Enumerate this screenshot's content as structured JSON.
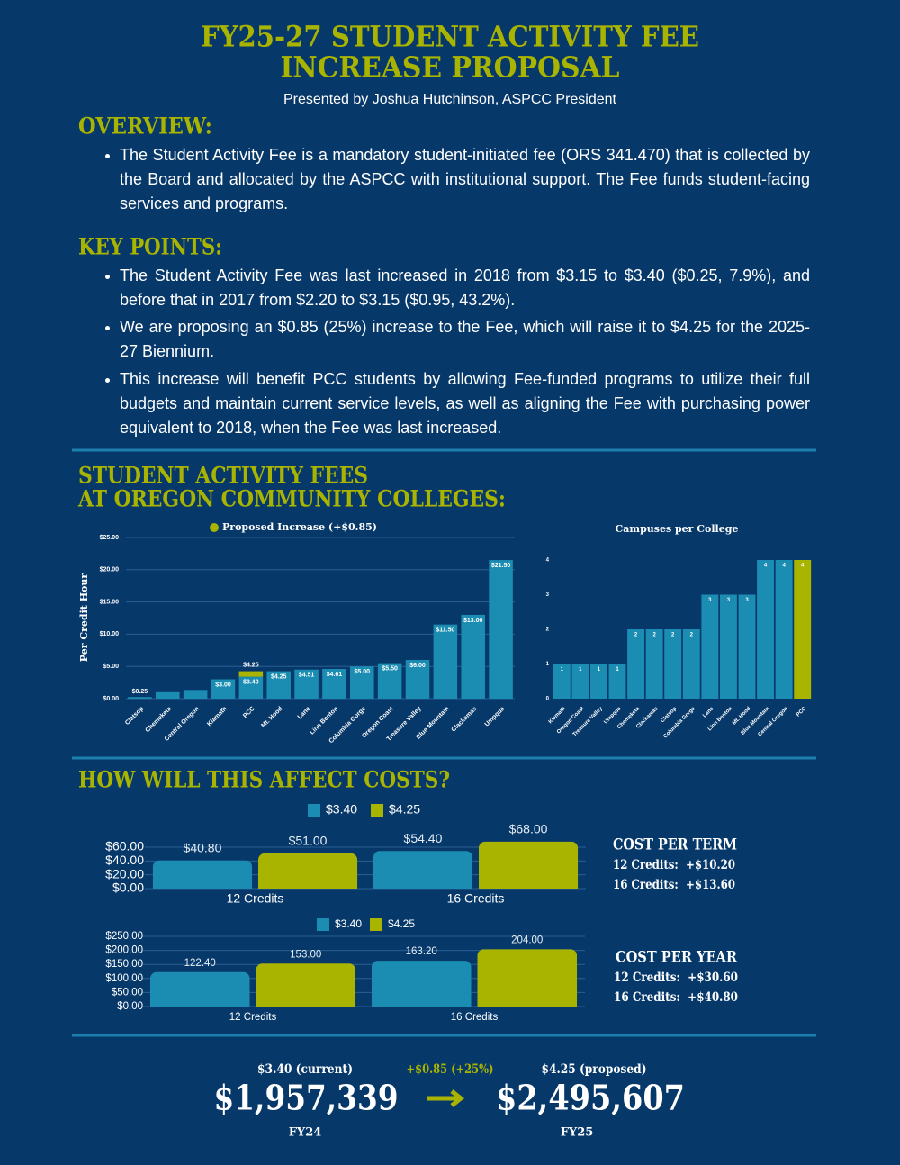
{
  "header": {
    "title": [
      "FY25-27 STUDENT ACTIVITY FEE",
      "INCREASE PROPOSAL"
    ],
    "subtitle": "Presented by Joshua Hutchinson, ASPCC President"
  },
  "overview": {
    "heading": "OVERVIEW:",
    "bullets": [
      "The Student Activity Fee is a mandatory student-initiated fee (ORS 341.470) that is collected by the Board and allocated by the ASPCC with institutional support. The Fee funds student-facing services and programs."
    ]
  },
  "key_points": {
    "heading": "KEY POINTS:",
    "bullets": [
      "The Student Activity Fee was last increased in 2018 from $3.15 to $3.40 ($0.25, 7.9%), and before that in 2017 from $2.20 to $3.15 ($0.95, 43.2%).",
      "We are proposing an $0.85 (25%) increase to the Fee, which will raise it to $4.25 for the 2025-27 Biennium.",
      "This increase will benefit PCC students by allowing Fee-funded programs to utilize their full budgets and maintain current service levels, as well as aligning the Fee with purchasing power equivalent to 2018, when the Fee was last increased."
    ]
  },
  "fees_heading": [
    "STUDENT ACTIVITY FEES",
    "AT OREGON COMMUNITY COLLEGES:"
  ],
  "costs_heading": "HOW WILL THIS AFFECT COSTS?",
  "cost_per_term": {
    "heading": "COST PER TERM",
    "lines": [
      "12 Credits:  +$10.20",
      "16 Credits:  +$13.60"
    ]
  },
  "cost_per_year": {
    "heading": "COST PER YEAR",
    "lines": [
      "12 Credits:  +$30.60",
      "16 Credits:  +$40.80"
    ]
  },
  "revenue": {
    "current_rate": "$3.40 (current)",
    "change": "+$0.85 (+25%)",
    "proposed_rate": "$4.25 (proposed)",
    "fy24_amount": "$1,957,339",
    "fy24_label": "FY24",
    "fy25_amount": "$2,495,607",
    "fy25_label": "FY25"
  },
  "chart_data": [
    {
      "type": "bar",
      "stacked": true,
      "ylabel": "Per Credit Hour",
      "categories": [
        "Clatsop",
        "Chemeketa",
        "Central Oregon",
        "Klamath",
        "PCC",
        "Mt. Hood",
        "Lane",
        "Linn Benton",
        "Columbia Gorge",
        "Oregon Coast",
        "Treasure Valley",
        "Blue Mountain",
        "Clackamas",
        "Umpqua"
      ],
      "series": [
        {
          "color": "#1b8cb2",
          "values": [
            0.25,
            1.0,
            1.35,
            3.0,
            3.4,
            4.25,
            4.51,
            4.61,
            5.0,
            5.5,
            6.0,
            11.5,
            13.0,
            21.5
          ],
          "value_labels": [
            "$0.25",
            null,
            null,
            "$3.00",
            "$3.40",
            "$4.25",
            "$4.51",
            "$4.61",
            "$5.00",
            "$5.50",
            "$6.00",
            "$11.50",
            "$13.00",
            "$21.50"
          ]
        },
        {
          "name": "Proposed Increase (+$0.85)",
          "color": "#a9b400",
          "values": [
            null,
            null,
            null,
            null,
            0.85,
            null,
            null,
            null,
            null,
            null,
            null,
            null,
            null,
            null
          ]
        }
      ],
      "annotations": [
        "$4.25"
      ],
      "ylim": [
        0,
        25
      ],
      "yticks": [
        {
          "value": 0,
          "label": "$0.00"
        },
        {
          "value": 5,
          "label": "$5.00"
        },
        {
          "value": 10,
          "label": "$10.00"
        },
        {
          "value": 15,
          "label": "$15.00"
        },
        {
          "value": 20,
          "label": "$20.00"
        },
        {
          "value": 25,
          "label": "$25.00"
        }
      ],
      "grid": true
    },
    {
      "type": "bar",
      "title": "Campuses per College",
      "categories": [
        "Klamath",
        "Oregon Coast",
        "Treasure Valley",
        "Umpqua",
        "Chemeketa",
        "Clackamas",
        "Clatsop",
        "Columbia Gorge",
        "Lane",
        "Linn Benton",
        "Mt. Hood",
        "Blue Mountain",
        "Central Oregon",
        "PCC"
      ],
      "values": [
        1,
        1,
        1,
        1,
        2,
        2,
        2,
        2,
        3,
        3,
        3,
        4,
        4,
        4
      ],
      "colors": [
        "#1b8cb2",
        "#1b8cb2",
        "#1b8cb2",
        "#1b8cb2",
        "#1b8cb2",
        "#1b8cb2",
        "#1b8cb2",
        "#1b8cb2",
        "#1b8cb2",
        "#1b8cb2",
        "#1b8cb2",
        "#1b8cb2",
        "#1b8cb2",
        "#a9b400"
      ],
      "ylim": [
        0,
        4
      ],
      "yticks": [
        0,
        1,
        2,
        3,
        4
      ],
      "grid": false
    },
    {
      "type": "bar",
      "categories": [
        "12 Credits",
        "16 Credits"
      ],
      "series": [
        {
          "name": "$3.40",
          "color": "#1b8cb2",
          "values": [
            40.8,
            54.4
          ],
          "value_labels": [
            "$40.80",
            "$54.40"
          ]
        },
        {
          "name": "$4.25",
          "color": "#a9b400",
          "values": [
            51.0,
            68.0
          ],
          "value_labels": [
            "$51.00",
            "$68.00"
          ]
        }
      ],
      "ylim": [
        0,
        70
      ],
      "yticks": [
        {
          "value": 0,
          "label": "$0.00"
        },
        {
          "value": 20,
          "label": "$20.00"
        },
        {
          "value": 40,
          "label": "$40.00"
        },
        {
          "value": 60,
          "label": "$60.00"
        }
      ],
      "grid": true
    },
    {
      "type": "bar",
      "categories": [
        "12 Credits",
        "16 Credits"
      ],
      "series": [
        {
          "name": "$3.40",
          "color": "#1b8cb2",
          "values": [
            122.4,
            163.2
          ],
          "value_labels": [
            "122.40",
            "163.20"
          ]
        },
        {
          "name": "$4.25",
          "color": "#a9b400",
          "values": [
            153.0,
            204.0
          ],
          "value_labels": [
            "153.00",
            "204.00"
          ]
        }
      ],
      "ylim": [
        0,
        250
      ],
      "yticks": [
        {
          "value": 0,
          "label": "$0.00"
        },
        {
          "value": 50,
          "label": "$50.00"
        },
        {
          "value": 100,
          "label": "$100.00"
        },
        {
          "value": 150,
          "label": "$150.00"
        },
        {
          "value": 200,
          "label": "$200.00"
        },
        {
          "value": 250,
          "label": "$250.00"
        }
      ],
      "grid": true
    }
  ]
}
